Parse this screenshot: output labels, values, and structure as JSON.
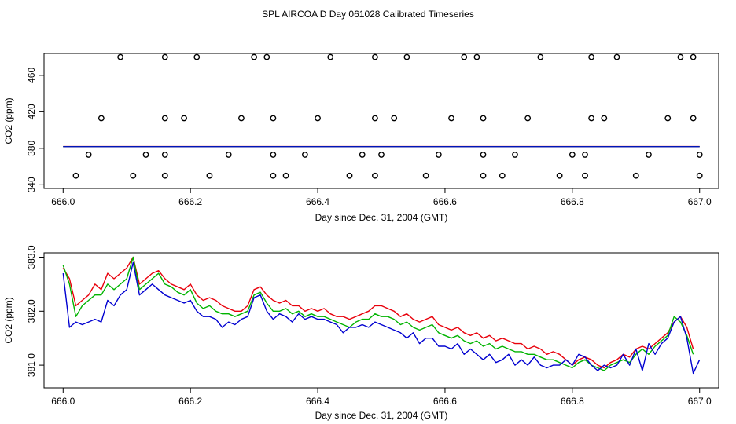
{
  "title": "SPL AIRCOA D  Day 061028  Calibrated Timeseries",
  "colors": {
    "red": "#e8000b",
    "green": "#00b400",
    "blue": "#0000d0",
    "axis": "#000000"
  },
  "chart_data": [
    {
      "type": "scatter",
      "xlabel": "Day since Dec. 31, 2004 (GMT)",
      "ylabel": "CO2 (ppm)",
      "xlim": [
        665.97,
        667.03
      ],
      "ylim": [
        336,
        484
      ],
      "xticks": [
        "666.0",
        "666.2",
        "666.4",
        "666.6",
        "666.8",
        "667.0"
      ],
      "xtick_values": [
        666.0,
        666.2,
        666.4,
        666.6,
        666.8,
        667.0
      ],
      "yticks": [
        "340",
        "380",
        "420",
        "460"
      ],
      "ytick_values": [
        340,
        380,
        420,
        460
      ],
      "outliers": {
        "marker": "circle-open",
        "y480_x": [
          666.09,
          666.16,
          666.21,
          666.3,
          666.32,
          666.42,
          666.49,
          666.54,
          666.63,
          666.65,
          666.75,
          666.83,
          666.87,
          666.97,
          666.99
        ],
        "y413_x": [
          666.06,
          666.16,
          666.19,
          666.28,
          666.33,
          666.4,
          666.49,
          666.52,
          666.61,
          666.66,
          666.73,
          666.83,
          666.85,
          666.95,
          666.99
        ],
        "y373_x": [
          666.04,
          666.13,
          666.16,
          666.26,
          666.33,
          666.38,
          666.47,
          666.5,
          666.59,
          666.66,
          666.71,
          666.8,
          666.82,
          666.92,
          667.0
        ],
        "y350_x": [
          666.02,
          666.11,
          666.16,
          666.23,
          666.33,
          666.35,
          666.45,
          666.49,
          666.57,
          666.66,
          666.69,
          666.78,
          666.82,
          666.9,
          667.0
        ]
      },
      "series": [
        {
          "color": "red",
          "constant": 382.0
        },
        {
          "color": "green",
          "constant": 381.9
        },
        {
          "color": "blue",
          "constant": 381.8
        }
      ]
    },
    {
      "type": "line",
      "xlabel": "Day since Dec. 31, 2004 (GMT)",
      "ylabel": "CO2 (ppm)",
      "xlim": [
        665.97,
        667.03
      ],
      "ylim": [
        380.58,
        383.08
      ],
      "xticks": [
        "666.0",
        "666.2",
        "666.4",
        "666.6",
        "666.8",
        "667.0"
      ],
      "xtick_values": [
        666.0,
        666.2,
        666.4,
        666.6,
        666.8,
        667.0
      ],
      "yticks": [
        "381.0",
        "382.0",
        "383.0"
      ],
      "ytick_values": [
        381.0,
        382.0,
        383.0
      ],
      "series": [
        {
          "color": "red",
          "x": [
            666.0,
            666.01,
            666.02,
            666.03,
            666.04,
            666.05,
            666.06,
            666.07,
            666.08,
            666.09,
            666.1,
            666.11,
            666.12,
            666.13,
            666.14,
            666.15,
            666.16,
            666.17,
            666.18,
            666.19,
            666.2,
            666.21,
            666.22,
            666.23,
            666.24,
            666.25,
            666.26,
            666.27,
            666.28,
            666.29,
            666.3,
            666.31,
            666.32,
            666.33,
            666.34,
            666.35,
            666.36,
            666.37,
            666.38,
            666.39,
            666.4,
            666.41,
            666.42,
            666.43,
            666.44,
            666.45,
            666.46,
            666.47,
            666.48,
            666.49,
            666.5,
            666.51,
            666.52,
            666.53,
            666.54,
            666.55,
            666.56,
            666.57,
            666.58,
            666.59,
            666.6,
            666.61,
            666.62,
            666.63,
            666.64,
            666.65,
            666.66,
            666.67,
            666.68,
            666.69,
            666.7,
            666.71,
            666.72,
            666.73,
            666.74,
            666.75,
            666.76,
            666.77,
            666.78,
            666.79,
            666.8,
            666.81,
            666.82,
            666.83,
            666.84,
            666.85,
            666.86,
            666.87,
            666.88,
            666.89,
            666.9,
            666.91,
            666.92,
            666.93,
            666.94,
            666.95,
            666.96,
            666.97,
            666.98,
            666.99
          ],
          "values": [
            382.8,
            382.6,
            382.1,
            382.2,
            382.3,
            382.5,
            382.4,
            382.7,
            382.6,
            382.7,
            382.8,
            383.0,
            382.5,
            382.6,
            382.7,
            382.75,
            382.6,
            382.5,
            382.45,
            382.4,
            382.5,
            382.3,
            382.2,
            382.25,
            382.2,
            382.1,
            382.05,
            382.0,
            382.0,
            382.1,
            382.4,
            382.45,
            382.3,
            382.2,
            382.15,
            382.2,
            382.1,
            382.1,
            382.0,
            382.05,
            382.0,
            382.05,
            381.95,
            381.9,
            381.9,
            381.85,
            381.9,
            381.95,
            382.0,
            382.1,
            382.1,
            382.05,
            382.0,
            381.9,
            381.95,
            381.85,
            381.8,
            381.85,
            381.9,
            381.75,
            381.7,
            381.65,
            381.7,
            381.6,
            381.55,
            381.6,
            381.5,
            381.55,
            381.45,
            381.5,
            381.45,
            381.4,
            381.4,
            381.3,
            381.35,
            381.3,
            381.2,
            381.25,
            381.2,
            381.1,
            381.0,
            381.1,
            381.15,
            381.1,
            381.0,
            380.95,
            381.05,
            381.1,
            381.2,
            381.15,
            381.3,
            381.35,
            381.3,
            381.4,
            381.5,
            381.6,
            381.8,
            381.9,
            381.7,
            381.3
          ]
        },
        {
          "color": "green",
          "x": [
            666.0,
            666.01,
            666.02,
            666.03,
            666.04,
            666.05,
            666.06,
            666.07,
            666.08,
            666.09,
            666.1,
            666.11,
            666.12,
            666.13,
            666.14,
            666.15,
            666.16,
            666.17,
            666.18,
            666.19,
            666.2,
            666.21,
            666.22,
            666.23,
            666.24,
            666.25,
            666.26,
            666.27,
            666.28,
            666.29,
            666.3,
            666.31,
            666.32,
            666.33,
            666.34,
            666.35,
            666.36,
            666.37,
            666.38,
            666.39,
            666.4,
            666.41,
            666.42,
            666.43,
            666.44,
            666.45,
            666.46,
            666.47,
            666.48,
            666.49,
            666.5,
            666.51,
            666.52,
            666.53,
            666.54,
            666.55,
            666.56,
            666.57,
            666.58,
            666.59,
            666.6,
            666.61,
            666.62,
            666.63,
            666.64,
            666.65,
            666.66,
            666.67,
            666.68,
            666.69,
            666.7,
            666.71,
            666.72,
            666.73,
            666.74,
            666.75,
            666.76,
            666.77,
            666.78,
            666.79,
            666.8,
            666.81,
            666.82,
            666.83,
            666.84,
            666.85,
            666.86,
            666.87,
            666.88,
            666.89,
            666.9,
            666.91,
            666.92,
            666.93,
            666.94,
            666.95,
            666.96,
            666.97,
            666.98,
            666.99
          ],
          "values": [
            382.85,
            382.5,
            381.9,
            382.1,
            382.2,
            382.3,
            382.3,
            382.5,
            382.4,
            382.5,
            382.6,
            383.0,
            382.4,
            382.5,
            382.6,
            382.7,
            382.5,
            382.45,
            382.35,
            382.3,
            382.4,
            382.15,
            382.05,
            382.1,
            382.0,
            381.95,
            381.95,
            381.9,
            381.95,
            382.0,
            382.3,
            382.35,
            382.15,
            382.0,
            382.0,
            382.05,
            381.95,
            382.0,
            381.9,
            381.95,
            381.9,
            381.9,
            381.85,
            381.8,
            381.75,
            381.7,
            381.8,
            381.85,
            381.85,
            381.95,
            381.9,
            381.9,
            381.85,
            381.75,
            381.8,
            381.7,
            381.65,
            381.7,
            381.75,
            381.6,
            381.55,
            381.5,
            381.55,
            381.45,
            381.4,
            381.45,
            381.35,
            381.4,
            381.3,
            381.35,
            381.3,
            381.25,
            381.25,
            381.2,
            381.2,
            381.15,
            381.1,
            381.1,
            381.05,
            381.0,
            380.95,
            381.05,
            381.1,
            381.0,
            380.95,
            380.9,
            381.0,
            381.05,
            381.1,
            381.05,
            381.2,
            381.3,
            381.2,
            381.35,
            381.45,
            381.55,
            381.9,
            381.8,
            381.55,
            381.2
          ]
        },
        {
          "color": "blue",
          "x": [
            666.0,
            666.01,
            666.02,
            666.03,
            666.04,
            666.05,
            666.06,
            666.07,
            666.08,
            666.09,
            666.1,
            666.11,
            666.12,
            666.13,
            666.14,
            666.15,
            666.16,
            666.17,
            666.18,
            666.19,
            666.2,
            666.21,
            666.22,
            666.23,
            666.24,
            666.25,
            666.26,
            666.27,
            666.28,
            666.29,
            666.3,
            666.31,
            666.32,
            666.33,
            666.34,
            666.35,
            666.36,
            666.37,
            666.38,
            666.39,
            666.4,
            666.41,
            666.42,
            666.43,
            666.44,
            666.45,
            666.46,
            666.47,
            666.48,
            666.49,
            666.5,
            666.51,
            666.52,
            666.53,
            666.54,
            666.55,
            666.56,
            666.57,
            666.58,
            666.59,
            666.6,
            666.61,
            666.62,
            666.63,
            666.64,
            666.65,
            666.66,
            666.67,
            666.68,
            666.69,
            666.7,
            666.71,
            666.72,
            666.73,
            666.74,
            666.75,
            666.76,
            666.77,
            666.78,
            666.79,
            666.8,
            666.81,
            666.82,
            666.83,
            666.84,
            666.85,
            666.86,
            666.87,
            666.88,
            666.89,
            666.9,
            666.91,
            666.92,
            666.93,
            666.94,
            666.95,
            666.96,
            666.97,
            666.98,
            666.99,
            667.0
          ],
          "values": [
            382.7,
            381.7,
            381.8,
            381.75,
            381.8,
            381.85,
            381.8,
            382.2,
            382.1,
            382.3,
            382.4,
            382.9,
            382.3,
            382.4,
            382.5,
            382.4,
            382.3,
            382.25,
            382.2,
            382.15,
            382.2,
            382.0,
            381.9,
            381.9,
            381.85,
            381.7,
            381.8,
            381.75,
            381.85,
            381.9,
            382.25,
            382.3,
            382.0,
            381.85,
            381.95,
            381.9,
            381.8,
            381.95,
            381.85,
            381.9,
            381.85,
            381.85,
            381.8,
            381.75,
            381.6,
            381.7,
            381.7,
            381.75,
            381.7,
            381.8,
            381.75,
            381.7,
            381.65,
            381.6,
            381.5,
            381.6,
            381.4,
            381.5,
            381.5,
            381.35,
            381.35,
            381.3,
            381.4,
            381.2,
            381.3,
            381.2,
            381.1,
            381.2,
            381.05,
            381.1,
            381.2,
            381.0,
            381.1,
            381.0,
            381.15,
            381.0,
            380.95,
            381.0,
            381.0,
            381.1,
            381.0,
            381.2,
            381.15,
            381.0,
            380.9,
            381.0,
            380.95,
            381.0,
            381.2,
            381.0,
            381.3,
            380.9,
            381.4,
            381.2,
            381.4,
            381.5,
            381.8,
            381.9,
            381.5,
            380.85,
            381.1
          ]
        }
      ]
    }
  ]
}
